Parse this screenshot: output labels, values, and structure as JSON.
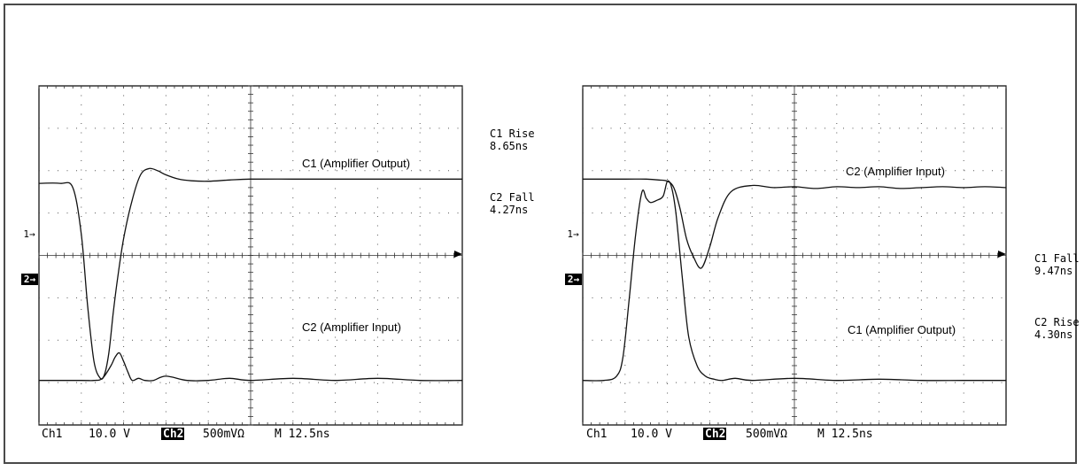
{
  "colors": {
    "frame": "#4a4a4a",
    "grid_border": "#000000",
    "grid_dots": "#555555",
    "trace": "#111111",
    "badge_bg": "#000000",
    "badge_fg": "#ffffff"
  },
  "chart_data": [
    {
      "type": "line",
      "title": "",
      "xlabel": "",
      "ylabel": "",
      "grid": true,
      "divisions": {
        "x": 10,
        "y": 8
      },
      "xlim": [
        0,
        10
      ],
      "ylim": [
        -4,
        4
      ],
      "ch1_marker_label": "1→",
      "ch2_marker_label": "2→",
      "settings": {
        "ch1": "Ch1",
        "ch1_scale": "10.0 V",
        "ch2": "Ch2",
        "ch2_scale": "500mVΩ",
        "timebase": "M 12.5ns"
      },
      "measurements": [
        {
          "name": "C1 Rise",
          "value": "8.65ns"
        },
        {
          "name": "C2 Fall",
          "value": "4.27ns"
        }
      ],
      "annotations": [
        {
          "text": "C1 (Amplifier Output)",
          "series": "C1 (Amplifier Output)"
        },
        {
          "text": "C2 (Amplifier Input)",
          "series": "C2 (Amplifier Input)"
        }
      ],
      "series": [
        {
          "name": "C1 (Amplifier Output)",
          "x": [
            0,
            0.5,
            0.8,
            1.0,
            1.15,
            1.3,
            1.45,
            1.55,
            1.65,
            1.75,
            1.85,
            2.0,
            2.2,
            2.4,
            2.6,
            2.8,
            3.0,
            3.3,
            3.6,
            4.0,
            4.5,
            5.0,
            6.0,
            7.0,
            8.0,
            9.0,
            10.0
          ],
          "y": [
            1.7,
            1.7,
            1.6,
            0.5,
            -1.2,
            -2.5,
            -2.9,
            -2.8,
            -2.3,
            -1.4,
            -0.6,
            0.4,
            1.3,
            1.9,
            2.05,
            2.0,
            1.9,
            1.8,
            1.76,
            1.75,
            1.78,
            1.8,
            1.8,
            1.8,
            1.8,
            1.8,
            1.8
          ]
        },
        {
          "name": "C2 (Amplifier Input)",
          "x": [
            0,
            1.0,
            1.3,
            1.5,
            1.7,
            1.8,
            1.9,
            2.0,
            2.1,
            2.2,
            2.35,
            2.5,
            2.7,
            3.0,
            3.5,
            4.0,
            4.5,
            5.0,
            6.0,
            7.0,
            8.0,
            9.0,
            10.0
          ],
          "y": [
            -2.95,
            -2.95,
            -2.95,
            -2.9,
            -2.6,
            -2.4,
            -2.3,
            -2.5,
            -2.75,
            -2.95,
            -2.9,
            -2.95,
            -2.95,
            -2.85,
            -2.95,
            -2.95,
            -2.9,
            -2.95,
            -2.9,
            -2.95,
            -2.9,
            -2.95,
            -2.95
          ]
        }
      ]
    },
    {
      "type": "line",
      "title": "",
      "xlabel": "",
      "ylabel": "",
      "grid": true,
      "divisions": {
        "x": 10,
        "y": 8
      },
      "xlim": [
        0,
        10
      ],
      "ylim": [
        -4,
        4
      ],
      "ch1_marker_label": "1→",
      "ch2_marker_label": "2→",
      "settings": {
        "ch1": "Ch1",
        "ch1_scale": "10.0 V",
        "ch2": "Ch2",
        "ch2_scale": "500mVΩ",
        "timebase": "M 12.5ns"
      },
      "measurements": [
        {
          "name": "C1 Fall",
          "value": "9.47ns"
        },
        {
          "name": "C2 Rise",
          "value": "4.30ns"
        }
      ],
      "annotations": [
        {
          "text": "C2 (Amplifier Input)",
          "series": "C2 (Amplifier Input)"
        },
        {
          "text": "C1 (Amplifier Output)",
          "series": "C1 (Amplifier Output)"
        }
      ],
      "series": [
        {
          "name": "C2 (Amplifier Input)",
          "x": [
            0,
            1.0,
            1.5,
            1.8,
            2.0,
            2.15,
            2.3,
            2.45,
            2.6,
            2.8,
            3.0,
            3.2,
            3.5,
            4.0,
            4.5,
            5.0,
            5.5,
            6.0,
            6.5,
            7.0,
            7.5,
            8.0,
            8.5,
            9.0,
            9.5,
            10.0
          ],
          "y": [
            1.8,
            1.8,
            1.8,
            1.78,
            1.75,
            1.6,
            1.1,
            0.4,
            0.0,
            -0.3,
            0.2,
            0.9,
            1.5,
            1.65,
            1.6,
            1.62,
            1.58,
            1.62,
            1.6,
            1.62,
            1.58,
            1.6,
            1.62,
            1.6,
            1.62,
            1.6
          ]
        },
        {
          "name": "C1 (Amplifier Output)",
          "x": [
            0,
            0.5,
            0.8,
            0.95,
            1.1,
            1.25,
            1.4,
            1.5,
            1.6,
            1.75,
            1.9,
            2.0,
            2.1,
            2.2,
            2.35,
            2.5,
            2.7,
            2.9,
            3.1,
            3.3,
            3.6,
            4.0,
            5.0,
            6.0,
            7.0,
            8.0,
            9.0,
            10.0
          ],
          "y": [
            -2.95,
            -2.95,
            -2.85,
            -2.4,
            -1.0,
            0.5,
            1.5,
            1.35,
            1.25,
            1.3,
            1.4,
            1.75,
            1.6,
            1.0,
            -0.5,
            -1.9,
            -2.6,
            -2.85,
            -2.92,
            -2.95,
            -2.9,
            -2.95,
            -2.9,
            -2.95,
            -2.92,
            -2.95,
            -2.95,
            -2.95
          ]
        }
      ]
    }
  ]
}
